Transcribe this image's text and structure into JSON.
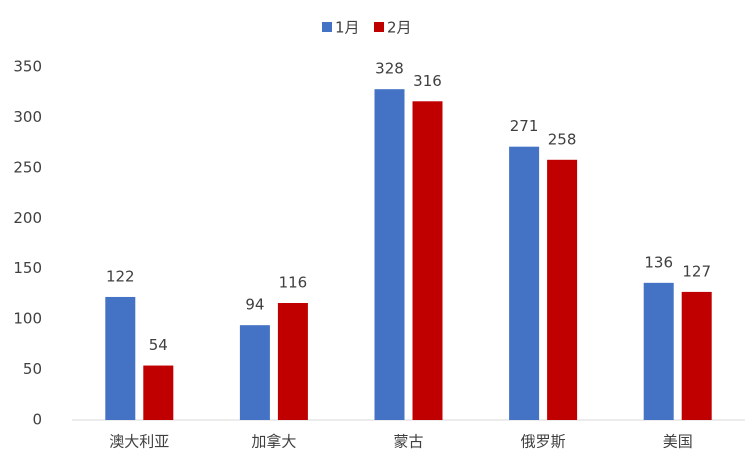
{
  "chart_data": {
    "type": "bar",
    "categories": [
      "澳大利亚",
      "加拿大",
      "蒙古",
      "俄罗斯",
      "美国"
    ],
    "series": [
      {
        "name": "1月",
        "color": "#4472c4",
        "values": [
          122,
          94,
          328,
          271,
          136
        ]
      },
      {
        "name": "2月",
        "color": "#c00000",
        "values": [
          54,
          116,
          316,
          258,
          127
        ]
      }
    ],
    "ylim": [
      0,
      350
    ],
    "yticks": [
      0,
      50,
      100,
      150,
      200,
      250,
      300,
      350
    ],
    "grid": false,
    "legend": "top"
  }
}
